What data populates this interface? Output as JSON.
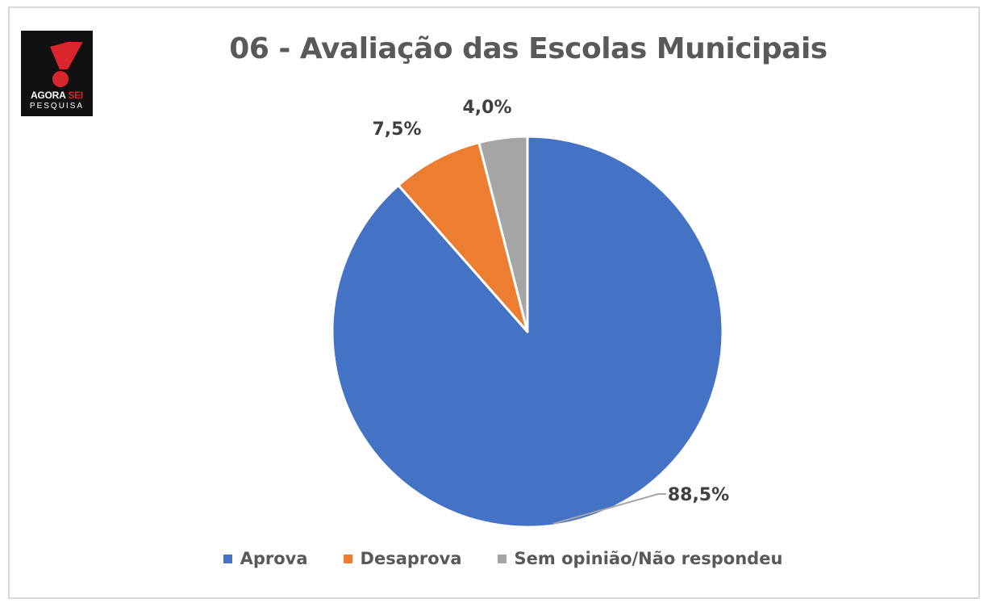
{
  "logo": {
    "line1_part1": "AGORA",
    "line1_part2": "SEI",
    "line2": "PESQUISA"
  },
  "chart_data": {
    "type": "pie",
    "title": "06 - Avaliação das Escolas Municipais",
    "categories": [
      "Aprova",
      "Desaprova",
      "Sem opinião/Não respondeu"
    ],
    "values": [
      88.5,
      7.5,
      4.0
    ],
    "labels": [
      "88,5%",
      "7,5%",
      "4,0%"
    ],
    "colors": [
      "#4472c4",
      "#ed7d31",
      "#a5a5a5"
    ],
    "start_angle": "12 o'clock",
    "direction": "clockwise",
    "legend_position": "bottom"
  }
}
